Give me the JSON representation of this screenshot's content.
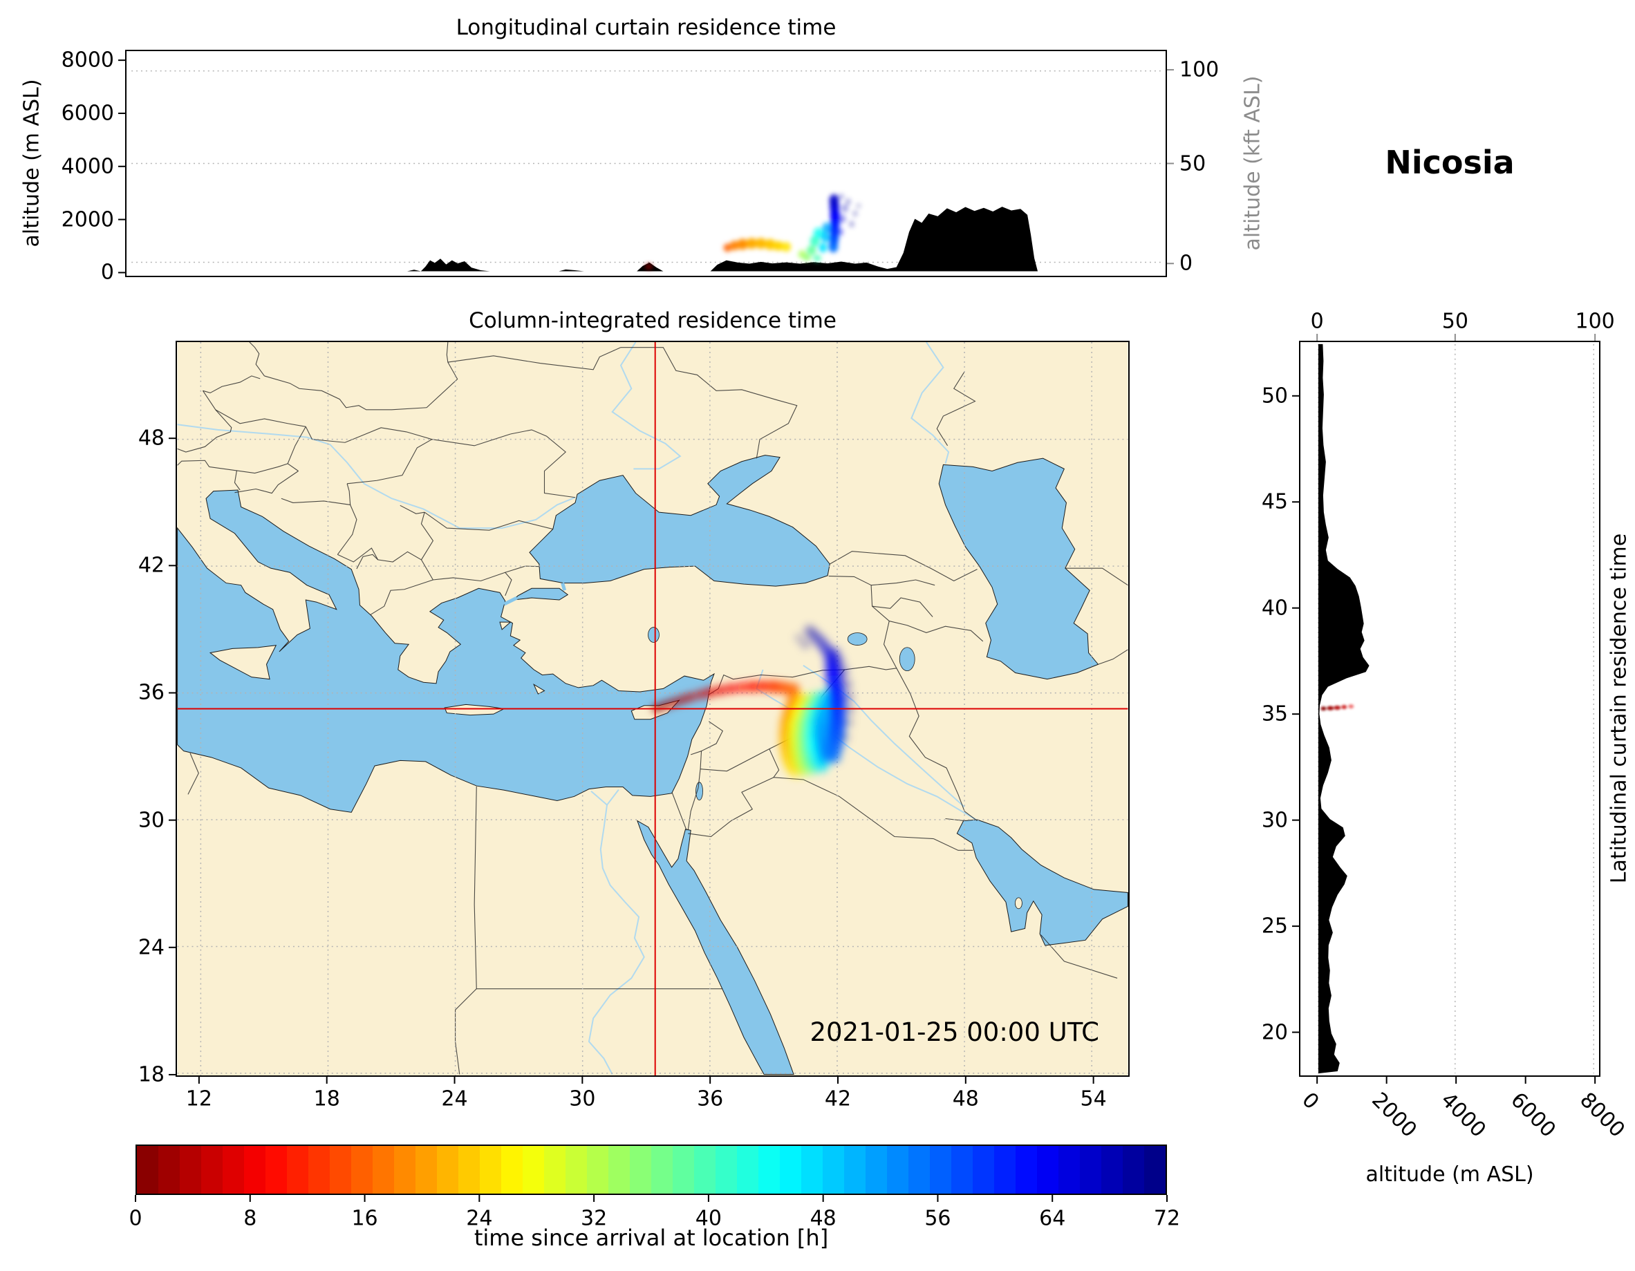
{
  "figure_title": "Nicosia",
  "colors": {
    "land": "#faf0d2",
    "sea": "#87c6ea",
    "crosshair": "#dd0000",
    "terrain": "#000000",
    "secondary_axis": "#8c8c8c"
  },
  "colorbar": {
    "label": "time since arrival at location [h]",
    "min": 0,
    "max": 72,
    "colormap": "jet_r",
    "ticks": [
      0,
      8,
      16,
      24,
      32,
      40,
      48,
      56,
      64,
      72
    ]
  },
  "chart_data": [
    {
      "id": "longitudinal_curtain",
      "type": "heatmap",
      "title": "Longitudinal curtain residence time",
      "ylabel": "altitude (m ASL)",
      "ylabel_right": "altitude (kft ASL)",
      "xlim": [
        10.9,
        55.7
      ],
      "ylim_m": [
        0,
        8000
      ],
      "yticks_m": [
        8000,
        6000,
        4000,
        2000,
        0
      ],
      "yticks_kft": [
        100,
        50,
        0
      ],
      "grid": "dotted",
      "terrain_lon_alt": [
        [
          10.9,
          0
        ],
        [
          22.9,
          0
        ],
        [
          23.2,
          60
        ],
        [
          23.5,
          0
        ],
        [
          23.7,
          180
        ],
        [
          23.9,
          420
        ],
        [
          24.1,
          320
        ],
        [
          24.35,
          480
        ],
        [
          24.6,
          260
        ],
        [
          24.85,
          420
        ],
        [
          25.1,
          300
        ],
        [
          25.4,
          380
        ],
        [
          25.7,
          140
        ],
        [
          26.1,
          40
        ],
        [
          26.5,
          0
        ],
        [
          29.5,
          0
        ],
        [
          29.8,
          70
        ],
        [
          30.2,
          40
        ],
        [
          30.6,
          0
        ],
        [
          32.9,
          0
        ],
        [
          33.15,
          200
        ],
        [
          33.45,
          330
        ],
        [
          33.75,
          150
        ],
        [
          34.05,
          0
        ],
        [
          36.1,
          0
        ],
        [
          36.4,
          250
        ],
        [
          36.8,
          420
        ],
        [
          37.3,
          330
        ],
        [
          37.8,
          290
        ],
        [
          38.3,
          360
        ],
        [
          38.8,
          300
        ],
        [
          39.4,
          340
        ],
        [
          40.0,
          290
        ],
        [
          40.6,
          350
        ],
        [
          41.2,
          300
        ],
        [
          41.8,
          370
        ],
        [
          42.4,
          290
        ],
        [
          42.9,
          330
        ],
        [
          43.4,
          180
        ],
        [
          43.8,
          90
        ],
        [
          44.2,
          160
        ],
        [
          44.5,
          700
        ],
        [
          44.75,
          1500
        ],
        [
          45.0,
          2000
        ],
        [
          45.3,
          1850
        ],
        [
          45.6,
          2200
        ],
        [
          46.0,
          2100
        ],
        [
          46.4,
          2400
        ],
        [
          46.8,
          2250
        ],
        [
          47.2,
          2450
        ],
        [
          47.6,
          2300
        ],
        [
          48.0,
          2420
        ],
        [
          48.4,
          2280
        ],
        [
          48.8,
          2460
        ],
        [
          49.2,
          2320
        ],
        [
          49.6,
          2380
        ],
        [
          49.9,
          2150
        ],
        [
          50.05,
          1400
        ],
        [
          50.2,
          500
        ],
        [
          50.35,
          0
        ],
        [
          55.7,
          0
        ]
      ],
      "plume_lon_alt_h": [
        [
          33.42,
          180,
          1,
          5,
          4,
          1
        ],
        [
          36.85,
          900,
          16,
          6,
          6,
          0.9
        ],
        [
          37.15,
          980,
          18,
          7,
          7,
          0.95
        ],
        [
          37.5,
          1030,
          19,
          8,
          8,
          1
        ],
        [
          37.9,
          1060,
          21,
          8,
          8,
          1
        ],
        [
          38.3,
          1060,
          22,
          8,
          8,
          1
        ],
        [
          38.7,
          1020,
          23,
          8,
          8,
          1
        ],
        [
          39.05,
          970,
          24,
          8,
          7,
          1
        ],
        [
          39.4,
          930,
          25,
          7,
          7,
          0.9
        ],
        [
          40.1,
          650,
          33,
          6,
          6,
          0.8
        ],
        [
          40.3,
          520,
          35,
          6,
          5,
          0.85
        ],
        [
          40.5,
          800,
          38,
          7,
          7,
          0.9
        ],
        [
          40.65,
          1150,
          41,
          7,
          8,
          0.9
        ],
        [
          40.8,
          1450,
          44,
          7,
          8,
          0.85
        ],
        [
          40.75,
          500,
          40,
          6,
          5,
          0.8
        ],
        [
          41.0,
          900,
          47,
          6,
          7,
          0.9
        ],
        [
          41.1,
          1300,
          49,
          6,
          8,
          0.9
        ],
        [
          41.15,
          1650,
          51,
          6,
          8,
          0.85
        ],
        [
          41.45,
          950,
          55,
          7,
          9,
          0.95
        ],
        [
          41.48,
          1250,
          57,
          7,
          10,
          1
        ],
        [
          41.5,
          1550,
          59,
          7,
          10,
          1
        ],
        [
          41.52,
          1850,
          61,
          7,
          10,
          1
        ],
        [
          41.52,
          2150,
          63,
          7,
          10,
          1
        ],
        [
          41.5,
          2450,
          65,
          7,
          10,
          0.95
        ],
        [
          41.48,
          2700,
          67,
          7,
          9,
          0.9
        ],
        [
          41.75,
          1500,
          64,
          5,
          6,
          0.4
        ],
        [
          41.85,
          2000,
          66,
          5,
          6,
          0.4
        ],
        [
          41.95,
          2400,
          68,
          5,
          6,
          0.35
        ],
        [
          42.1,
          2650,
          70,
          4,
          5,
          0.3
        ],
        [
          42.25,
          1800,
          70,
          4,
          5,
          0.3
        ],
        [
          42.4,
          2200,
          71,
          4,
          5,
          0.25
        ],
        [
          42.55,
          2500,
          72,
          4,
          4,
          0.2
        ],
        [
          41.8,
          2850,
          69,
          4,
          4,
          0.3
        ]
      ]
    },
    {
      "id": "column_integrated_map",
      "type": "heatmap",
      "title": "Column-integrated residence time",
      "annotation": "2021-01-25 00:00 UTC",
      "xlim": [
        10.9,
        55.7
      ],
      "ylim": [
        17.9,
        52.6
      ],
      "xticks": [
        12,
        18,
        24,
        30,
        36,
        42,
        48,
        54
      ],
      "yticks": [
        48,
        42,
        36,
        30,
        24,
        18
      ],
      "receptor": {
        "name": "Nicosia",
        "lon": 33.42,
        "lat": 35.25
      },
      "plume_lon_lat_h": [
        [
          33.5,
          35.28,
          0.5,
          6,
          1
        ],
        [
          33.9,
          35.42,
          1.5,
          6,
          1
        ],
        [
          34.3,
          35.55,
          2.5,
          6,
          1
        ],
        [
          34.7,
          35.68,
          3.5,
          6,
          1
        ],
        [
          35.1,
          35.8,
          4.5,
          6,
          1
        ],
        [
          35.55,
          35.92,
          5.5,
          6,
          1
        ],
        [
          36.0,
          36.02,
          6.5,
          7,
          1
        ],
        [
          36.5,
          36.12,
          7.5,
          7,
          1
        ],
        [
          37.0,
          36.2,
          8.5,
          7,
          1
        ],
        [
          37.5,
          36.26,
          9.5,
          7,
          1
        ],
        [
          38.0,
          36.3,
          10.5,
          8,
          1
        ],
        [
          38.5,
          36.32,
          11.5,
          8,
          1
        ],
        [
          39.0,
          36.3,
          13,
          9,
          1
        ],
        [
          39.45,
          36.25,
          14.5,
          9,
          0.95
        ],
        [
          39.9,
          36.15,
          16,
          10,
          0.9
        ],
        [
          40.05,
          35.6,
          18,
          13,
          0.9
        ],
        [
          39.9,
          35.1,
          19,
          14,
          0.9
        ],
        [
          39.8,
          34.6,
          20,
          15,
          0.9
        ],
        [
          39.75,
          34.1,
          21,
          15,
          0.9
        ],
        [
          39.75,
          33.6,
          22,
          15,
          0.9
        ],
        [
          39.8,
          33.1,
          23,
          14,
          0.85
        ],
        [
          39.9,
          32.7,
          24,
          13,
          0.8
        ],
        [
          40.05,
          32.4,
          25,
          12,
          0.7
        ],
        [
          40.45,
          35.55,
          26,
          13,
          0.9
        ],
        [
          40.3,
          35.0,
          27,
          15,
          0.9
        ],
        [
          40.2,
          34.45,
          28,
          16,
          0.9
        ],
        [
          40.2,
          33.9,
          29,
          16,
          0.9
        ],
        [
          40.25,
          33.35,
          30,
          15,
          0.9
        ],
        [
          40.35,
          32.85,
          31,
          14,
          0.85
        ],
        [
          40.5,
          32.45,
          32,
          12,
          0.75
        ],
        [
          40.85,
          35.6,
          33,
          13,
          0.9
        ],
        [
          40.7,
          35.05,
          34,
          15,
          0.92
        ],
        [
          40.6,
          34.5,
          35,
          16,
          0.95
        ],
        [
          40.6,
          33.95,
          36,
          16,
          0.95
        ],
        [
          40.65,
          33.4,
          37,
          15,
          0.9
        ],
        [
          40.75,
          32.9,
          38,
          14,
          0.85
        ],
        [
          40.9,
          32.55,
          39,
          12,
          0.75
        ],
        [
          41.2,
          35.65,
          41,
          13,
          0.9
        ],
        [
          41.05,
          35.1,
          42,
          15,
          0.95
        ],
        [
          40.98,
          34.55,
          43,
          16,
          0.95
        ],
        [
          40.98,
          34.0,
          44,
          16,
          0.95
        ],
        [
          41.02,
          33.45,
          45,
          15,
          0.9
        ],
        [
          41.12,
          32.95,
          46,
          13,
          0.85
        ],
        [
          41.25,
          32.6,
          47,
          11,
          0.75
        ],
        [
          41.55,
          35.7,
          49,
          13,
          0.9
        ],
        [
          41.42,
          35.15,
          50,
          14,
          0.95
        ],
        [
          41.35,
          34.6,
          51,
          15,
          0.95
        ],
        [
          41.35,
          34.05,
          52,
          15,
          0.9
        ],
        [
          41.4,
          33.5,
          53,
          13,
          0.9
        ],
        [
          41.5,
          33.05,
          54,
          12,
          0.8
        ],
        [
          41.85,
          33.0,
          55,
          10,
          0.8
        ],
        [
          41.9,
          33.5,
          56,
          12,
          0.9
        ],
        [
          41.95,
          34.05,
          57,
          13,
          0.95
        ],
        [
          42.0,
          34.6,
          58,
          13,
          0.95
        ],
        [
          42.0,
          35.15,
          59,
          13,
          0.95
        ],
        [
          41.98,
          35.7,
          60,
          13,
          0.95
        ],
        [
          41.92,
          36.2,
          61,
          12,
          0.95
        ],
        [
          41.85,
          36.7,
          62,
          12,
          0.9
        ],
        [
          41.8,
          37.15,
          63,
          11,
          0.85
        ],
        [
          41.75,
          37.55,
          64,
          10,
          0.8
        ],
        [
          41.6,
          37.9,
          65,
          9,
          0.6
        ],
        [
          41.4,
          38.2,
          66,
          9,
          0.55
        ],
        [
          41.15,
          38.5,
          67,
          9,
          0.5
        ],
        [
          40.9,
          38.75,
          68,
          8,
          0.45
        ],
        [
          40.7,
          38.95,
          69,
          8,
          0.4
        ],
        [
          41.9,
          37.9,
          66,
          8,
          0.45
        ],
        [
          42.1,
          37.5,
          67,
          8,
          0.4
        ],
        [
          42.3,
          37.0,
          68,
          8,
          0.4
        ],
        [
          42.45,
          36.4,
          69,
          8,
          0.35
        ],
        [
          42.55,
          35.8,
          70,
          8,
          0.3
        ],
        [
          42.6,
          35.2,
          71,
          7,
          0.3
        ],
        [
          42.55,
          34.6,
          72,
          7,
          0.25
        ],
        [
          42.4,
          33.9,
          72,
          7,
          0.2
        ],
        [
          40.5,
          38.3,
          70,
          7,
          0.3
        ],
        [
          40.2,
          38.6,
          71,
          6,
          0.25
        ]
      ]
    },
    {
      "id": "latitudinal_curtain",
      "type": "heatmap",
      "title": "Latitudinal curtain residence time",
      "xlabel": "altitude (m ASL)",
      "xticks_m": [
        0,
        2000,
        4000,
        6000,
        8000
      ],
      "xticks_kft": [
        0,
        50,
        100
      ],
      "ylim": [
        17.9,
        52.6
      ],
      "yticks": [
        50,
        45,
        40,
        35,
        30,
        25,
        20
      ],
      "terrain_lat_alt": [
        [
          18.0,
          560
        ],
        [
          18.4,
          620
        ],
        [
          18.8,
          460
        ],
        [
          19.3,
          520
        ],
        [
          19.8,
          380
        ],
        [
          20.4,
          320
        ],
        [
          21.0,
          300
        ],
        [
          21.6,
          380
        ],
        [
          22.2,
          310
        ],
        [
          22.8,
          340
        ],
        [
          23.4,
          290
        ],
        [
          24.0,
          300
        ],
        [
          24.6,
          420
        ],
        [
          25.2,
          310
        ],
        [
          25.8,
          400
        ],
        [
          26.4,
          560
        ],
        [
          26.9,
          760
        ],
        [
          27.3,
          840
        ],
        [
          27.7,
          640
        ],
        [
          28.2,
          420
        ],
        [
          28.7,
          520
        ],
        [
          29.2,
          780
        ],
        [
          29.6,
          720
        ],
        [
          30.0,
          340
        ],
        [
          30.5,
          90
        ],
        [
          31.0,
          60
        ],
        [
          31.6,
          140
        ],
        [
          32.2,
          280
        ],
        [
          32.8,
          380
        ],
        [
          33.4,
          320
        ],
        [
          34.0,
          170
        ],
        [
          34.5,
          70
        ],
        [
          35.0,
          30
        ],
        [
          35.4,
          40
        ],
        [
          35.9,
          110
        ],
        [
          36.3,
          280
        ],
        [
          36.7,
          820
        ],
        [
          37.0,
          1380
        ],
        [
          37.3,
          1480
        ],
        [
          37.7,
          1300
        ],
        [
          38.1,
          1220
        ],
        [
          38.5,
          1340
        ],
        [
          38.9,
          1260
        ],
        [
          39.3,
          1320
        ],
        [
          39.7,
          1280
        ],
        [
          40.1,
          1240
        ],
        [
          40.6,
          1180
        ],
        [
          41.1,
          1080
        ],
        [
          41.5,
          920
        ],
        [
          41.9,
          560
        ],
        [
          42.3,
          280
        ],
        [
          42.8,
          220
        ],
        [
          43.4,
          300
        ],
        [
          44.0,
          220
        ],
        [
          44.6,
          160
        ],
        [
          45.4,
          140
        ],
        [
          46.2,
          180
        ],
        [
          47.0,
          220
        ],
        [
          47.8,
          150
        ],
        [
          48.6,
          120
        ],
        [
          49.4,
          140
        ],
        [
          50.2,
          160
        ],
        [
          51.0,
          130
        ],
        [
          51.8,
          150
        ],
        [
          52.6,
          130
        ]
      ],
      "plume_alt_lat_h": [
        [
          150,
          35.26,
          0.5,
          4,
          3,
          1
        ],
        [
          350,
          35.28,
          2,
          5,
          3,
          1
        ],
        [
          550,
          35.3,
          3.5,
          5,
          3,
          0.95
        ],
        [
          750,
          35.33,
          5,
          4,
          3,
          0.85
        ],
        [
          950,
          35.36,
          7,
          4,
          3,
          0.55
        ]
      ]
    }
  ]
}
